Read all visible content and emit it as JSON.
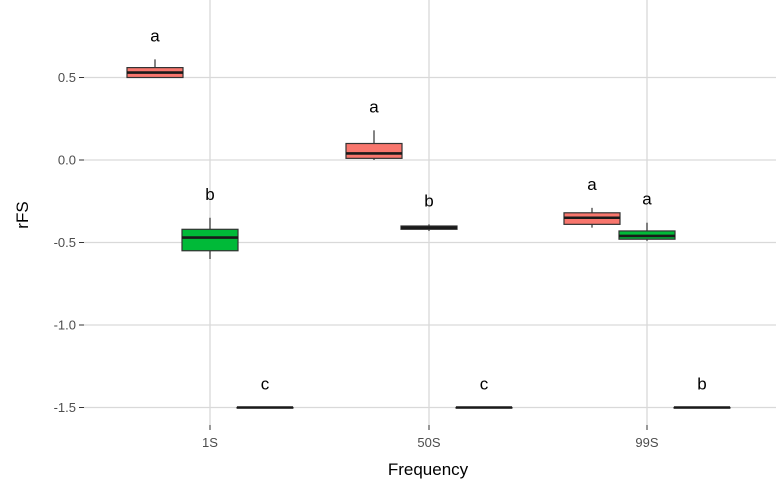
{
  "chart_data": {
    "type": "boxplot",
    "title": "",
    "xlabel": "Frequency",
    "ylabel": "rFS",
    "categories": [
      "1S",
      "50S",
      "99S"
    ],
    "yticks": [
      "0.5",
      "0.0",
      "-0.5",
      "-1.0",
      "-1.5"
    ],
    "ytick_values": [
      0.5,
      0.0,
      -0.5,
      -1.0,
      -1.5
    ],
    "ylim": [
      -1.57,
      0.9
    ],
    "grid": true,
    "legend": "none",
    "series": [
      {
        "color": "#F8766D",
        "boxes": [
          {
            "category": "1S",
            "min": 0.5,
            "q1": 0.5,
            "median": 0.53,
            "q3": 0.56,
            "max": 0.61,
            "letter": "a"
          },
          {
            "category": "50S",
            "min": 0.0,
            "q1": 0.01,
            "median": 0.04,
            "q3": 0.1,
            "max": 0.18,
            "letter": "a"
          },
          {
            "category": "99S",
            "min": -0.41,
            "q1": -0.39,
            "median": -0.35,
            "q3": -0.32,
            "max": -0.29,
            "letter": "a"
          }
        ]
      },
      {
        "color": "#00BA38",
        "boxes": [
          {
            "category": "1S",
            "min": -0.6,
            "q1": -0.55,
            "median": -0.47,
            "q3": -0.42,
            "max": -0.35,
            "letter": "b"
          },
          {
            "category": "50S",
            "min": -0.43,
            "q1": -0.42,
            "median": -0.41,
            "q3": -0.4,
            "max": -0.39,
            "letter": "b"
          },
          {
            "category": "99S",
            "min": -0.49,
            "q1": -0.48,
            "median": -0.46,
            "q3": -0.43,
            "max": -0.38,
            "letter": "a"
          }
        ]
      },
      {
        "color": "#619CFF",
        "boxes": [
          {
            "category": "1S",
            "min": -1.5,
            "q1": -1.5,
            "median": -1.5,
            "q3": -1.5,
            "max": -1.5,
            "letter": "c"
          },
          {
            "category": "50S",
            "min": -1.5,
            "q1": -1.5,
            "median": -1.5,
            "q3": -1.5,
            "max": -1.5,
            "letter": "c"
          },
          {
            "category": "99S",
            "min": -1.5,
            "q1": -1.5,
            "median": -1.5,
            "q3": -1.5,
            "max": -1.5,
            "letter": "b"
          }
        ]
      }
    ]
  }
}
